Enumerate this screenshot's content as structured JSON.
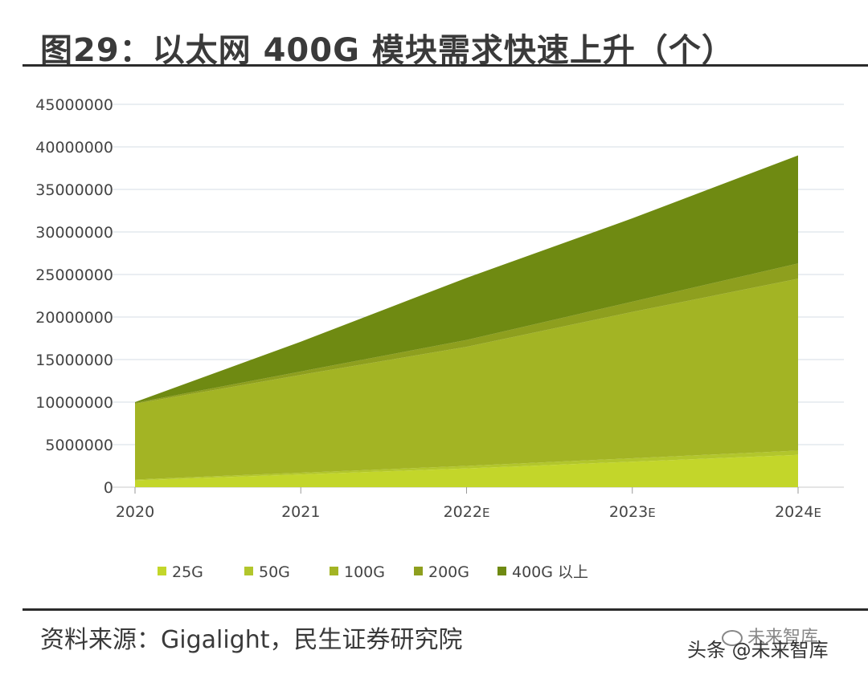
{
  "title": "图29：以太网 400G 模块需求快速上升（个）",
  "source": "资料来源：Gigalight，民生证券研究院",
  "watermark": {
    "platform": "头条 @未来智库",
    "logo_text": "未来智库"
  },
  "colors": {
    "25G": "#c3d62a",
    "50G": "#b2c62c",
    "100G": "#a3b424",
    "200G": "#8e9f1e",
    "400G": "#6f8a12"
  },
  "chart_data": {
    "type": "area",
    "stacked": true,
    "title": "以太网 400G 模块需求快速上升（个）",
    "categories": [
      "2020",
      "2021",
      "2022E",
      "2023E",
      "2024E"
    ],
    "category_labels": [
      {
        "main": "2020",
        "suffix": ""
      },
      {
        "main": "2021",
        "suffix": ""
      },
      {
        "main": "2022",
        "suffix": "E"
      },
      {
        "main": "2023",
        "suffix": "E"
      },
      {
        "main": "2024",
        "suffix": "E"
      }
    ],
    "series": [
      {
        "name": "25G",
        "values": [
          800000,
          1500000,
          2200000,
          3000000,
          3800000
        ]
      },
      {
        "name": "50G",
        "values": [
          100000,
          200000,
          300000,
          400000,
          500000
        ]
      },
      {
        "name": "100G",
        "values": [
          8900000,
          11500000,
          14000000,
          17200000,
          20200000
        ]
      },
      {
        "name": "200G",
        "values": [
          100000,
          400000,
          800000,
          1200000,
          1800000
        ]
      },
      {
        "name": "400G 以上",
        "values": [
          100000,
          3500000,
          7300000,
          9800000,
          12700000
        ]
      }
    ],
    "yticks": [
      0,
      5000000,
      10000000,
      15000000,
      20000000,
      25000000,
      30000000,
      35000000,
      40000000,
      45000000
    ],
    "ylim": [
      0,
      45000000
    ],
    "grid": true,
    "legend": "bottom",
    "xlabel": "",
    "ylabel": ""
  }
}
